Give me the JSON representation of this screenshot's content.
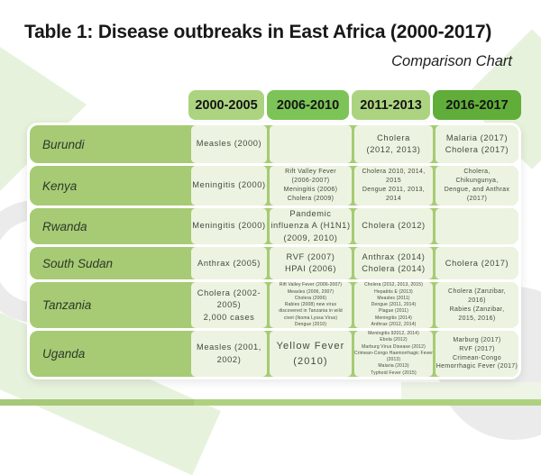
{
  "title": "Table 1: Disease outbreaks in East Africa (2000-2017)",
  "subtitle": "Comparison Chart",
  "colors": {
    "header_light": "#acd480",
    "header_medium": "#7cc457",
    "header_dark": "#60ad39",
    "row_label": "#a6cb74",
    "cell_bg": "#edf3e1",
    "bar_left": "#a6c878",
    "bar_right": "#aed180",
    "decor_green": "#e7f2dc",
    "decor_green_light": "#eef5e7",
    "decor_gray": "#ebebeb"
  },
  "table": {
    "columns": [
      {
        "label": "2000-2005",
        "color": "#acd480"
      },
      {
        "label": "2006-2010",
        "color": "#7cc457"
      },
      {
        "label": "2011-2013",
        "color": "#acd480"
      },
      {
        "label": "2016-2017",
        "color": "#60ad39"
      }
    ],
    "rows": [
      {
        "country": "Burundi",
        "cells": [
          {
            "size": "md",
            "lines": [
              "Measles (2000)"
            ]
          },
          {
            "size": "md",
            "lines": []
          },
          {
            "size": "md",
            "lines": [
              "Cholera",
              "(2012, 2013)"
            ]
          },
          {
            "size": "md",
            "lines": [
              "Malaria (2017)",
              "Cholera (2017)"
            ]
          }
        ]
      },
      {
        "country": "Kenya",
        "cells": [
          {
            "size": "md",
            "lines": [
              "Meningitis (2000)"
            ]
          },
          {
            "size": "sm",
            "lines": [
              "Rift Valley Fever",
              "(2006-2007)",
              "Meningitis (2006)",
              "Cholera (2009)"
            ]
          },
          {
            "size": "sm",
            "lines": [
              "Cholera 2010, 2014,",
              "2015",
              "Dengue 2011, 2013,",
              "2014"
            ]
          },
          {
            "size": "sm",
            "lines": [
              "Cholera,",
              "Chikungunya,",
              "Dengue, and Anthrax",
              "(2017)"
            ]
          }
        ]
      },
      {
        "country": "Rwanda",
        "cells": [
          {
            "size": "md",
            "lines": [
              "Meningitis (2000)"
            ]
          },
          {
            "size": "md",
            "lines": [
              "Pandemic",
              "influenza A (H1N1)",
              "(2009, 2010)"
            ]
          },
          {
            "size": "md",
            "lines": [
              "Cholera (2012)"
            ]
          },
          {
            "size": "md",
            "lines": []
          }
        ]
      },
      {
        "country": "South Sudan",
        "cells": [
          {
            "size": "md",
            "lines": [
              "Anthrax (2005)"
            ]
          },
          {
            "size": "md",
            "lines": [
              "RVF (2007)",
              "HPAI (2006)"
            ]
          },
          {
            "size": "md",
            "lines": [
              "Anthrax (2014)",
              "Cholera (2014)"
            ]
          },
          {
            "size": "md",
            "lines": [
              "Cholera (2017)"
            ]
          }
        ]
      },
      {
        "country": "Tanzania",
        "cells": [
          {
            "size": "md",
            "lines": [
              "Cholera (2002-",
              "2005)",
              "2,000 cases"
            ]
          },
          {
            "size": "xs",
            "lines": [
              "Rift Valley Fever (2006-2007)",
              "Measles (2006, 2007)",
              "Cholera (2006)",
              "Rabies (2008) new virus",
              "discovered in Tanzania in wild",
              "civet (Ikoma Lyssa Virus)",
              "Dengue (2010)"
            ]
          },
          {
            "size": "xs",
            "lines": [
              "Cholera (2012, 2013, 2015)",
              "Hepatitis E (2013)",
              "Measles (2011)",
              "Dengue (2011, 2014)",
              "Plague (2011)",
              "Meningitis (2014)",
              "Anthrax (2012, 2014)"
            ]
          },
          {
            "size": "sm",
            "lines": [
              "Cholera (Zanzibar,",
              "2016)",
              "Rabies (Zanzibar,",
              "2015, 2016)"
            ]
          }
        ]
      },
      {
        "country": "Uganda",
        "cells": [
          {
            "size": "md",
            "lines": [
              "Measles (2001,",
              "2002)"
            ]
          },
          {
            "size": "lg",
            "lines": [
              "Yellow Fever",
              "(2010)"
            ]
          },
          {
            "size": "xs",
            "lines": [
              "Meningitis 92012, 2014)",
              "Ebola (2012)",
              "Marburg Virus Disease (2012)",
              "Crimean-Congo Haemorrhagic Fever",
              "(2013)",
              "Malaria (2013)",
              "Typhoid Fever (2015)"
            ]
          },
          {
            "size": "sm",
            "lines": [
              "Marburg (2017)",
              "RVF (2017)",
              "Crimean-Congo",
              "Hemorrhagic Fever (2017)"
            ]
          }
        ]
      }
    ]
  }
}
